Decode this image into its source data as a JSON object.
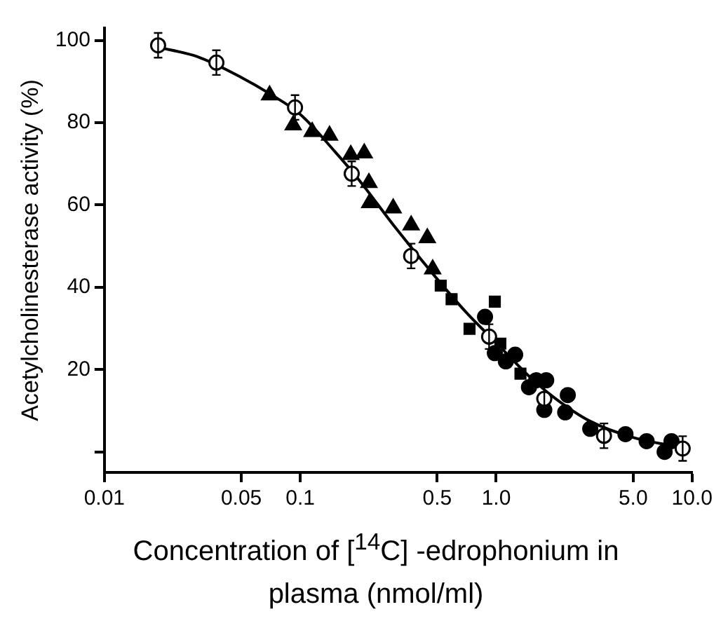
{
  "chart_data": {
    "type": "scatter",
    "xlabel": "Concentration of [$^{14}$C] -edrophonium in plasma (nmol/ml)",
    "ylabel": "Acetylcholinesterase activity (%)",
    "log": "x",
    "xlim": [
      0.01,
      10
    ],
    "xticks": [
      0.01,
      0.05,
      0.1,
      0.5,
      {
        "value": 1,
        "label": "1.0"
      },
      {
        "value": 5,
        "label": "5.0"
      },
      {
        "value": 10,
        "label": "10.0"
      }
    ],
    "ylim": [
      -5,
      103
    ],
    "yticks": [
      {
        "value": 0,
        "label": null
      },
      20,
      40,
      60,
      80,
      100
    ],
    "grid": false,
    "legend": false,
    "series": [
      {
        "type": "line",
        "marker": "none",
        "color": "#000000",
        "x": [
          0.018,
          0.03,
          0.05,
          0.07,
          0.1,
          0.15,
          0.2,
          0.3,
          0.5,
          0.7,
          1,
          1.5,
          2,
          3,
          5,
          9
        ],
        "values": [
          98.5,
          96,
          91,
          87,
          82,
          73,
          66,
          55,
          42,
          34,
          26.5,
          18,
          13,
          7.5,
          3.5,
          1
        ]
      },
      {
        "marker": "triangle",
        "color": "#000000",
        "x": [
          0.0697,
          0.092,
          0.115,
          0.141,
          0.181,
          0.212,
          0.224,
          0.226,
          0.298,
          0.368,
          0.445,
          0.474
        ],
        "values": [
          86.7,
          79.4,
          77.8,
          76.9,
          72.2,
          72.6,
          65.4,
          60.5,
          59.2,
          55.1,
          52,
          44.4
        ]
      },
      {
        "marker": "square",
        "color": "#000000",
        "x": [
          0.521,
          0.592,
          0.731,
          0.984,
          1.05,
          1.33
        ],
        "values": [
          40.4,
          37.1,
          29.9,
          36.5,
          26.3,
          19
        ]
      },
      {
        "marker": "circle",
        "color": "#000000",
        "x": [
          0.877,
          0.984,
          1.12,
          1.25,
          1.47,
          1.6,
          1.8,
          1.76,
          2.32,
          2.25,
          3.02,
          4.57,
          5.86,
          7.24,
          7.85
        ],
        "values": [
          32.8,
          24,
          22,
          23.6,
          15.7,
          17.4,
          17.4,
          10.2,
          13.8,
          9.6,
          5.6,
          4.3,
          2.6,
          0,
          2.6
        ]
      },
      {
        "marker": "circle",
        "color": "#ffffff",
        "x": [
          0.0188,
          0.0373,
          0.094,
          0.183,
          0.368,
          0.92,
          1.76,
          3.55,
          8.95
        ],
        "values": [
          98.8,
          94.6,
          83.7,
          67.6,
          47.6,
          28,
          12.9,
          3.9,
          0.8
        ],
        "errors": [
          3,
          3,
          3,
          3,
          3,
          3,
          3,
          3,
          3
        ]
      }
    ]
  }
}
